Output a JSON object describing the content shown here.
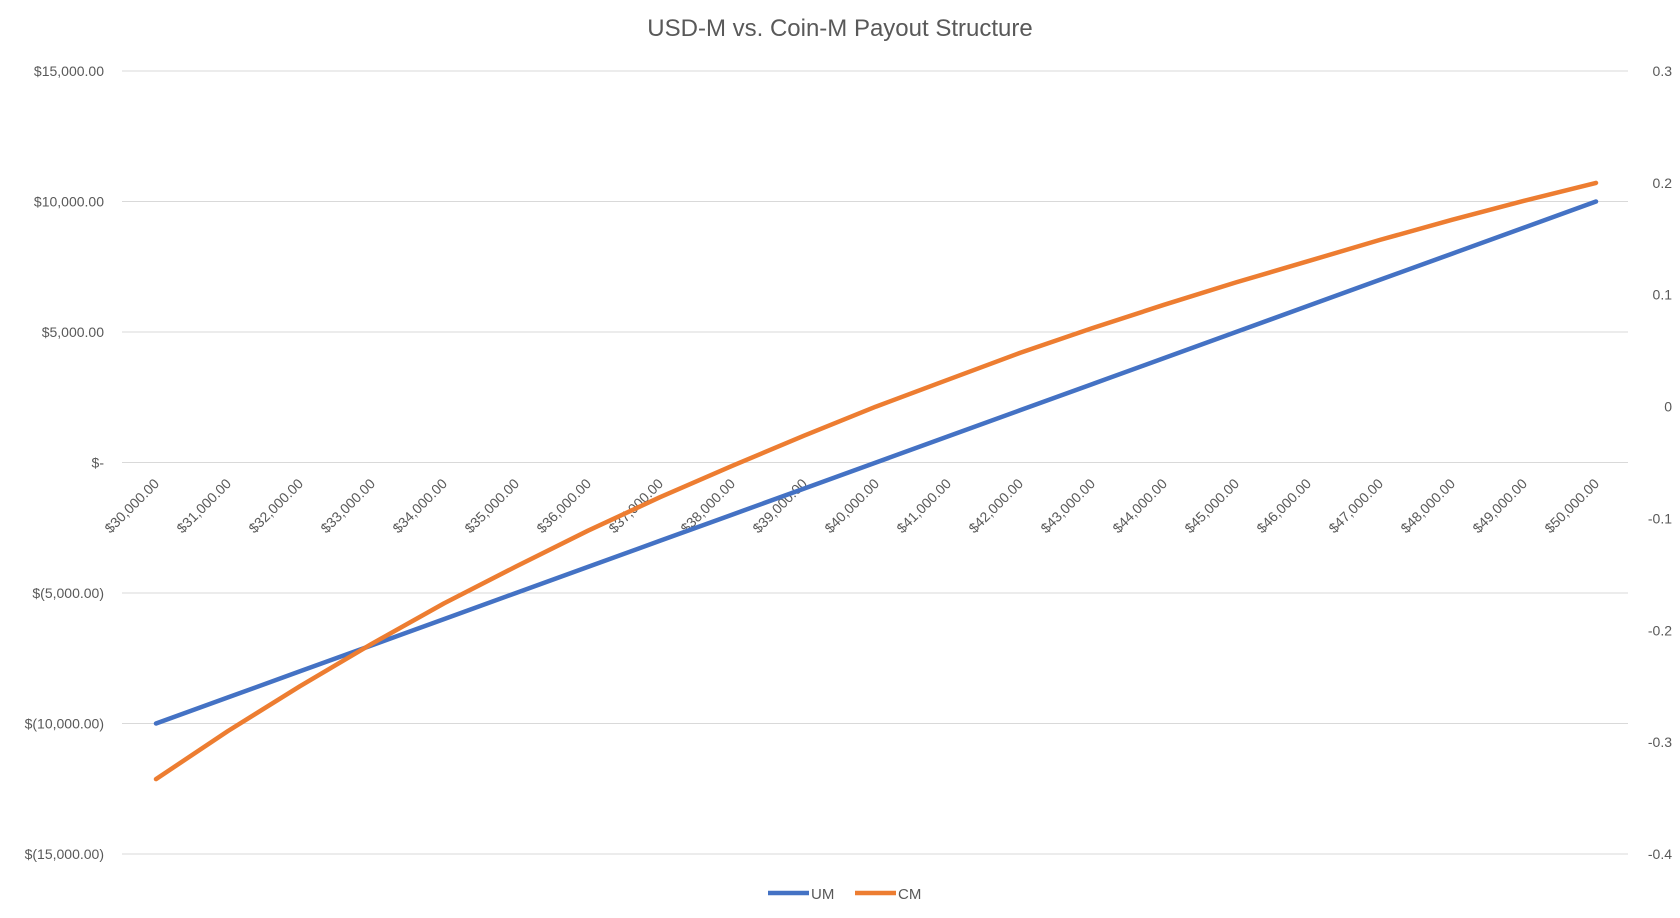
{
  "chart_data": {
    "type": "line",
    "title": "USD-M vs. Coin-M Payout Structure",
    "xlabel": "",
    "ylabel": "",
    "categories": [
      "$30,000.00",
      "$31,000.00",
      "$32,000.00",
      "$33,000.00",
      "$34,000.00",
      "$35,000.00",
      "$36,000.00",
      "$37,000.00",
      "$38,000.00",
      "$39,000.00",
      "$40,000.00",
      "$41,000.00",
      "$42,000.00",
      "$43,000.00",
      "$44,000.00",
      "$45,000.00",
      "$46,000.00",
      "$47,000.00",
      "$48,000.00",
      "$49,000.00",
      "$50,000.00"
    ],
    "y_left": {
      "ticks": [
        -15000,
        -10000,
        -5000,
        0,
        5000,
        10000,
        15000
      ],
      "tick_labels": [
        "$(15,000.00)",
        "$(10,000.00)",
        "$(5,000.00)",
        "$-",
        "$5,000.00",
        "$10,000.00",
        "$15,000.00"
      ],
      "ylim": [
        -15000,
        15000
      ]
    },
    "y_right": {
      "ticks": [
        -0.4,
        -0.3,
        -0.2,
        -0.1,
        0,
        0.1,
        0.2,
        0.3
      ],
      "tick_labels": [
        "-0.4",
        "-0.3",
        "-0.2",
        "-0.1",
        "0",
        "0.1",
        "0.2",
        "0.3"
      ],
      "ylim": [
        -0.4,
        0.3
      ]
    },
    "series": [
      {
        "name": "UM",
        "axis": "left",
        "color": "#4472C4",
        "values": [
          -10000,
          -9000,
          -8000,
          -7000,
          -6000,
          -5000,
          -4000,
          -3000,
          -2000,
          -1000,
          0,
          1000,
          2000,
          3000,
          4000,
          5000,
          6000,
          7000,
          8000,
          9000,
          10000
        ]
      },
      {
        "name": "CM",
        "axis": "right",
        "color": "#ED7D31",
        "values": [
          -0.333,
          -0.29,
          -0.25,
          -0.212,
          -0.176,
          -0.143,
          -0.111,
          -0.081,
          -0.053,
          -0.026,
          0,
          0.024,
          0.048,
          0.07,
          0.091,
          0.111,
          0.13,
          0.149,
          0.167,
          0.184,
          0.2
        ]
      }
    ],
    "grid": true,
    "legend": "bottom"
  }
}
